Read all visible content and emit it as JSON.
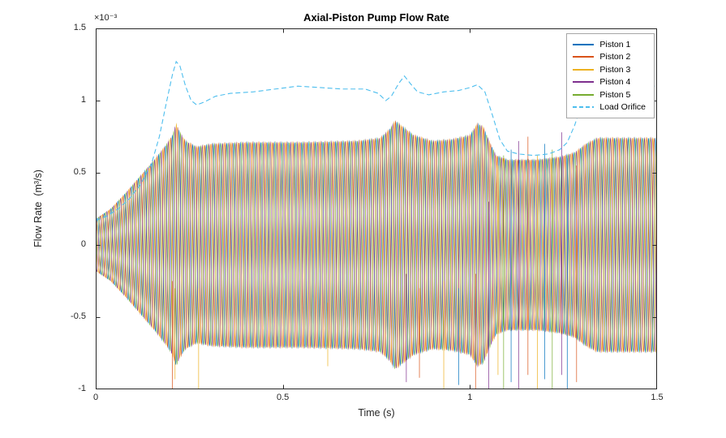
{
  "chart_data": {
    "type": "line",
    "title": "Axial-Piston Pump Flow Rate",
    "xlabel": "Time (s)",
    "ylabel": "Flow Rate  (m³/s)",
    "y_scale_label": "×10⁻³",
    "y_unit_scale": 0.001,
    "xlim": [
      0,
      1.5
    ],
    "ylim": [
      -1,
      1.5
    ],
    "x_ticks": [
      0,
      0.5,
      1,
      1.5
    ],
    "x_tick_labels": [
      "0",
      "0.5",
      "1",
      "1.5"
    ],
    "y_ticks": [
      -1,
      -0.5,
      0,
      0.5,
      1,
      1.5
    ],
    "y_tick_labels": [
      "-1",
      "-0.5",
      "0",
      "0.5",
      "1",
      "1.5"
    ],
    "grid": false,
    "legend_position": "northeast",
    "axis_color": "#262626",
    "series": [
      {
        "name": "Piston 1",
        "color": "#0072BD",
        "style": "solid",
        "phase_deg": 0
      },
      {
        "name": "Piston 2",
        "color": "#D95319",
        "style": "solid",
        "phase_deg": 72
      },
      {
        "name": "Piston 3",
        "color": "#EDB120",
        "style": "solid",
        "phase_deg": 144
      },
      {
        "name": "Piston 4",
        "color": "#7E2F8E",
        "style": "solid",
        "phase_deg": 216
      },
      {
        "name": "Piston 5",
        "color": "#77AC30",
        "style": "solid",
        "phase_deg": 288
      },
      {
        "name": "Load Orifice",
        "color": "#4DBEEE",
        "style": "dashed",
        "points": [
          [
            0,
            0.17
          ],
          [
            0.03,
            0.2
          ],
          [
            0.06,
            0.25
          ],
          [
            0.09,
            0.32
          ],
          [
            0.12,
            0.42
          ],
          [
            0.15,
            0.57
          ],
          [
            0.17,
            0.75
          ],
          [
            0.19,
            1.0
          ],
          [
            0.205,
            1.18
          ],
          [
            0.215,
            1.27
          ],
          [
            0.225,
            1.24
          ],
          [
            0.24,
            1.1
          ],
          [
            0.255,
            1.0
          ],
          [
            0.27,
            0.97
          ],
          [
            0.29,
            0.99
          ],
          [
            0.32,
            1.03
          ],
          [
            0.36,
            1.05
          ],
          [
            0.42,
            1.06
          ],
          [
            0.48,
            1.08
          ],
          [
            0.54,
            1.1
          ],
          [
            0.6,
            1.09
          ],
          [
            0.66,
            1.08
          ],
          [
            0.72,
            1.08
          ],
          [
            0.755,
            1.05
          ],
          [
            0.775,
            1.0
          ],
          [
            0.79,
            1.03
          ],
          [
            0.81,
            1.12
          ],
          [
            0.825,
            1.17
          ],
          [
            0.84,
            1.12
          ],
          [
            0.86,
            1.06
          ],
          [
            0.89,
            1.04
          ],
          [
            0.93,
            1.06
          ],
          [
            0.97,
            1.07
          ],
          [
            1.0,
            1.09
          ],
          [
            1.02,
            1.11
          ],
          [
            1.04,
            1.06
          ],
          [
            1.06,
            0.9
          ],
          [
            1.08,
            0.73
          ],
          [
            1.1,
            0.65
          ],
          [
            1.13,
            0.63
          ],
          [
            1.17,
            0.62
          ],
          [
            1.21,
            0.63
          ],
          [
            1.24,
            0.66
          ],
          [
            1.26,
            0.71
          ],
          [
            1.28,
            0.83
          ],
          [
            1.3,
            0.99
          ],
          [
            1.32,
            1.07
          ],
          [
            1.35,
            1.1
          ],
          [
            1.4,
            1.1
          ],
          [
            1.45,
            1.1
          ],
          [
            1.5,
            1.1
          ]
        ]
      }
    ],
    "piston_model": {
      "frequency_hz": 55,
      "phase_step_deg": 72,
      "amplitude_envelope": [
        [
          0,
          0.18
        ],
        [
          0.04,
          0.25
        ],
        [
          0.08,
          0.36
        ],
        [
          0.12,
          0.48
        ],
        [
          0.16,
          0.6
        ],
        [
          0.19,
          0.7
        ],
        [
          0.205,
          0.76
        ],
        [
          0.215,
          0.84
        ],
        [
          0.225,
          0.78
        ],
        [
          0.24,
          0.72
        ],
        [
          0.27,
          0.68
        ],
        [
          0.31,
          0.7
        ],
        [
          0.4,
          0.71
        ],
        [
          0.55,
          0.71
        ],
        [
          0.7,
          0.72
        ],
        [
          0.76,
          0.74
        ],
        [
          0.785,
          0.8
        ],
        [
          0.8,
          0.86
        ],
        [
          0.82,
          0.82
        ],
        [
          0.85,
          0.76
        ],
        [
          0.9,
          0.72
        ],
        [
          0.95,
          0.73
        ],
        [
          1.0,
          0.76
        ],
        [
          1.02,
          0.84
        ],
        [
          1.035,
          0.82
        ],
        [
          1.055,
          0.7
        ],
        [
          1.07,
          0.62
        ],
        [
          1.1,
          0.59
        ],
        [
          1.18,
          0.59
        ],
        [
          1.24,
          0.61
        ],
        [
          1.28,
          0.64
        ],
        [
          1.31,
          0.7
        ],
        [
          1.34,
          0.74
        ],
        [
          1.42,
          0.74
        ],
        [
          1.5,
          0.74
        ]
      ]
    },
    "spikes": [
      {
        "t": 0.205,
        "series": 1,
        "y1": -1.0,
        "y2": -0.25
      },
      {
        "t": 0.212,
        "series": 2,
        "y1": -0.93,
        "y2": -0.3
      },
      {
        "t": 0.275,
        "series": 2,
        "y1": -1.0,
        "y2": -0.3
      },
      {
        "t": 0.62,
        "series": 2,
        "y1": -0.84,
        "y2": -0.4
      },
      {
        "t": 0.83,
        "series": 3,
        "y1": -0.95,
        "y2": -0.2
      },
      {
        "t": 0.865,
        "series": 1,
        "y1": -0.92,
        "y2": -0.3
      },
      {
        "t": 0.93,
        "series": 2,
        "y1": -1.0,
        "y2": -0.25
      },
      {
        "t": 0.97,
        "series": 0,
        "y1": -0.97,
        "y2": -0.3
      },
      {
        "t": 1.015,
        "series": 1,
        "y1": -1.0,
        "y2": -0.2
      },
      {
        "t": 1.05,
        "series": 3,
        "y1": -1.0,
        "y2": 0.3
      },
      {
        "t": 1.075,
        "series": 2,
        "y1": -0.9,
        "y2": 0.55
      },
      {
        "t": 1.09,
        "series": 4,
        "y1": -1.0,
        "y2": 0.62
      },
      {
        "t": 1.11,
        "series": 0,
        "y1": -0.95,
        "y2": 0.66
      },
      {
        "t": 1.13,
        "series": 3,
        "y1": -1.0,
        "y2": 0.72
      },
      {
        "t": 1.155,
        "series": 1,
        "y1": -0.9,
        "y2": 0.75
      },
      {
        "t": 1.18,
        "series": 2,
        "y1": -1.0,
        "y2": 0.62
      },
      {
        "t": 1.2,
        "series": 0,
        "y1": -0.93,
        "y2": 0.7
      },
      {
        "t": 1.22,
        "series": 4,
        "y1": -1.0,
        "y2": 0.66
      },
      {
        "t": 1.245,
        "series": 3,
        "y1": -0.9,
        "y2": 0.78
      },
      {
        "t": 1.26,
        "series": 0,
        "y1": -1.0,
        "y2": 0.6
      },
      {
        "t": 1.285,
        "series": 1,
        "y1": -0.95,
        "y2": 0.55
      }
    ]
  }
}
